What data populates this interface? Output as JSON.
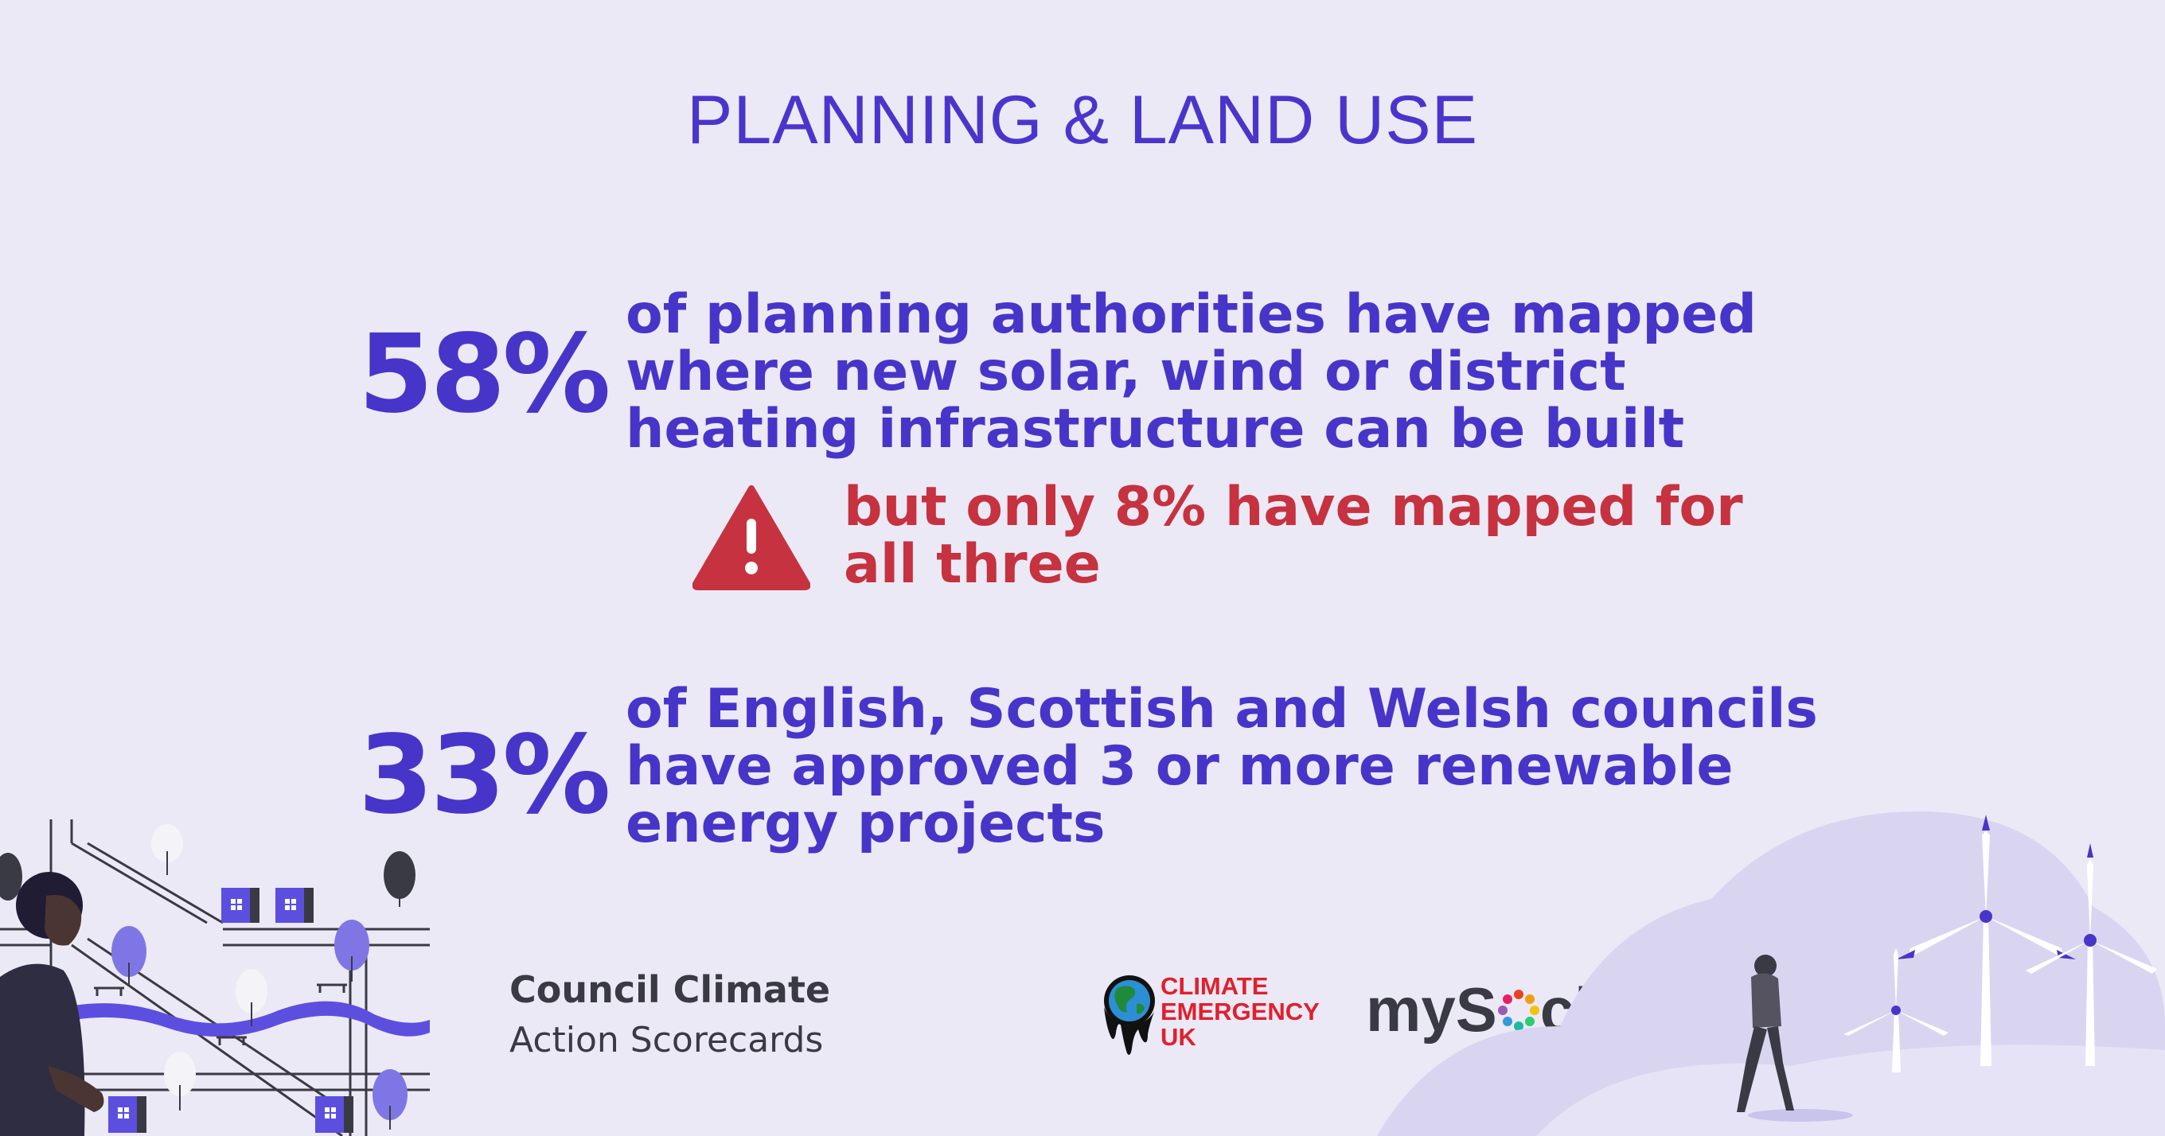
{
  "title": "PLANNING & LAND USE",
  "stats": [
    {
      "value": "58%",
      "lines": [
        "of planning authorities have mapped",
        "where new solar, wind or district",
        "heating infrastructure can be built"
      ]
    },
    {
      "value": "33%",
      "lines": [
        "of English, Scottish and Welsh councils",
        "have approved 3 or more renewable",
        "energy projects"
      ]
    }
  ],
  "warning": {
    "prefix": "but only ",
    "highlight": "8%",
    "suffix": " have mapped for",
    "line2": "all three"
  },
  "footer": {
    "scorecards_line1": "Council Climate",
    "scorecards_line2": "Action Scorecards",
    "ceuk_lines": [
      "CLIMATE",
      "EMERGENCY",
      "UK"
    ],
    "mysociety_before": "myS",
    "mysociety_after": "ciety"
  },
  "colors": {
    "primary": "#4735C9",
    "warning": "#C6323F",
    "background": "#ECE9F6",
    "ceuk_red": "#E0202E"
  }
}
